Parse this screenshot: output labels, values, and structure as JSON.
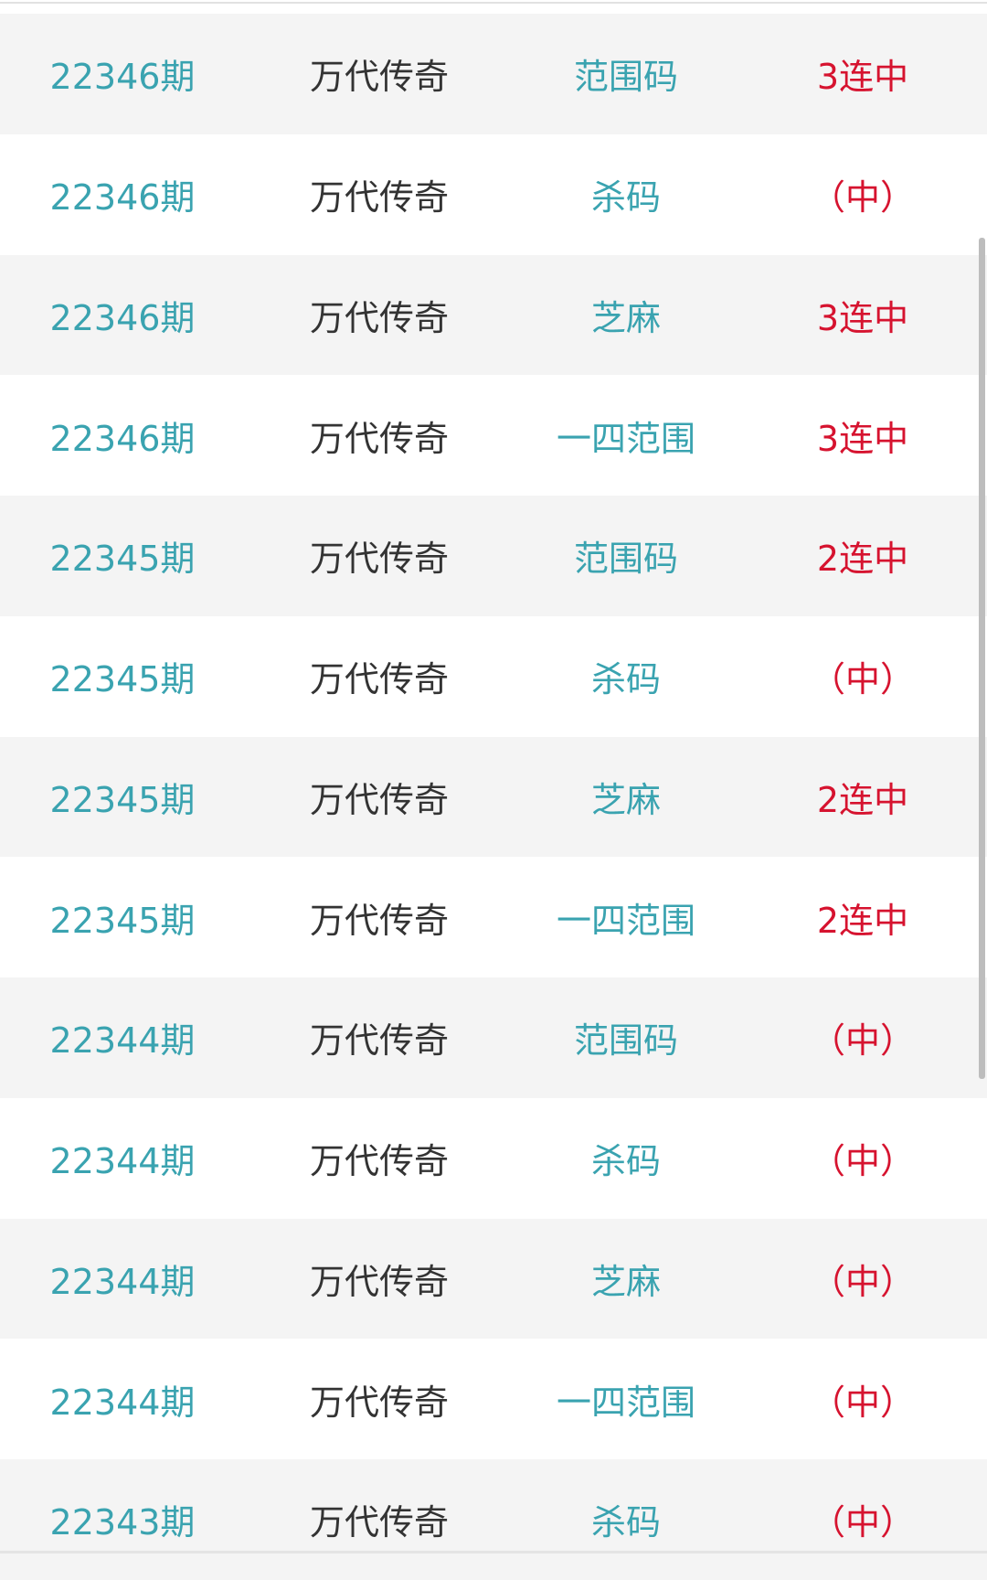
{
  "colors": {
    "issue": "#3aa3b0",
    "category": "#3aa3b0",
    "name": "#333333",
    "result": "#d6132f"
  },
  "rows": [
    {
      "issue": "22346期",
      "name": "万代传奇",
      "category": "范围码",
      "result": "3连中"
    },
    {
      "issue": "22346期",
      "name": "万代传奇",
      "category": "杀码",
      "result": "（中）"
    },
    {
      "issue": "22346期",
      "name": "万代传奇",
      "category": "芝麻",
      "result": "3连中"
    },
    {
      "issue": "22346期",
      "name": "万代传奇",
      "category": "一四范围",
      "result": "3连中"
    },
    {
      "issue": "22345期",
      "name": "万代传奇",
      "category": "范围码",
      "result": "2连中"
    },
    {
      "issue": "22345期",
      "name": "万代传奇",
      "category": "杀码",
      "result": "（中）"
    },
    {
      "issue": "22345期",
      "name": "万代传奇",
      "category": "芝麻",
      "result": "2连中"
    },
    {
      "issue": "22345期",
      "name": "万代传奇",
      "category": "一四范围",
      "result": "2连中"
    },
    {
      "issue": "22344期",
      "name": "万代传奇",
      "category": "范围码",
      "result": "（中）"
    },
    {
      "issue": "22344期",
      "name": "万代传奇",
      "category": "杀码",
      "result": "（中）"
    },
    {
      "issue": "22344期",
      "name": "万代传奇",
      "category": "芝麻",
      "result": "（中）"
    },
    {
      "issue": "22344期",
      "name": "万代传奇",
      "category": "一四范围",
      "result": "（中）"
    },
    {
      "issue": "22343期",
      "name": "万代传奇",
      "category": "杀码",
      "result": "（中）"
    }
  ]
}
